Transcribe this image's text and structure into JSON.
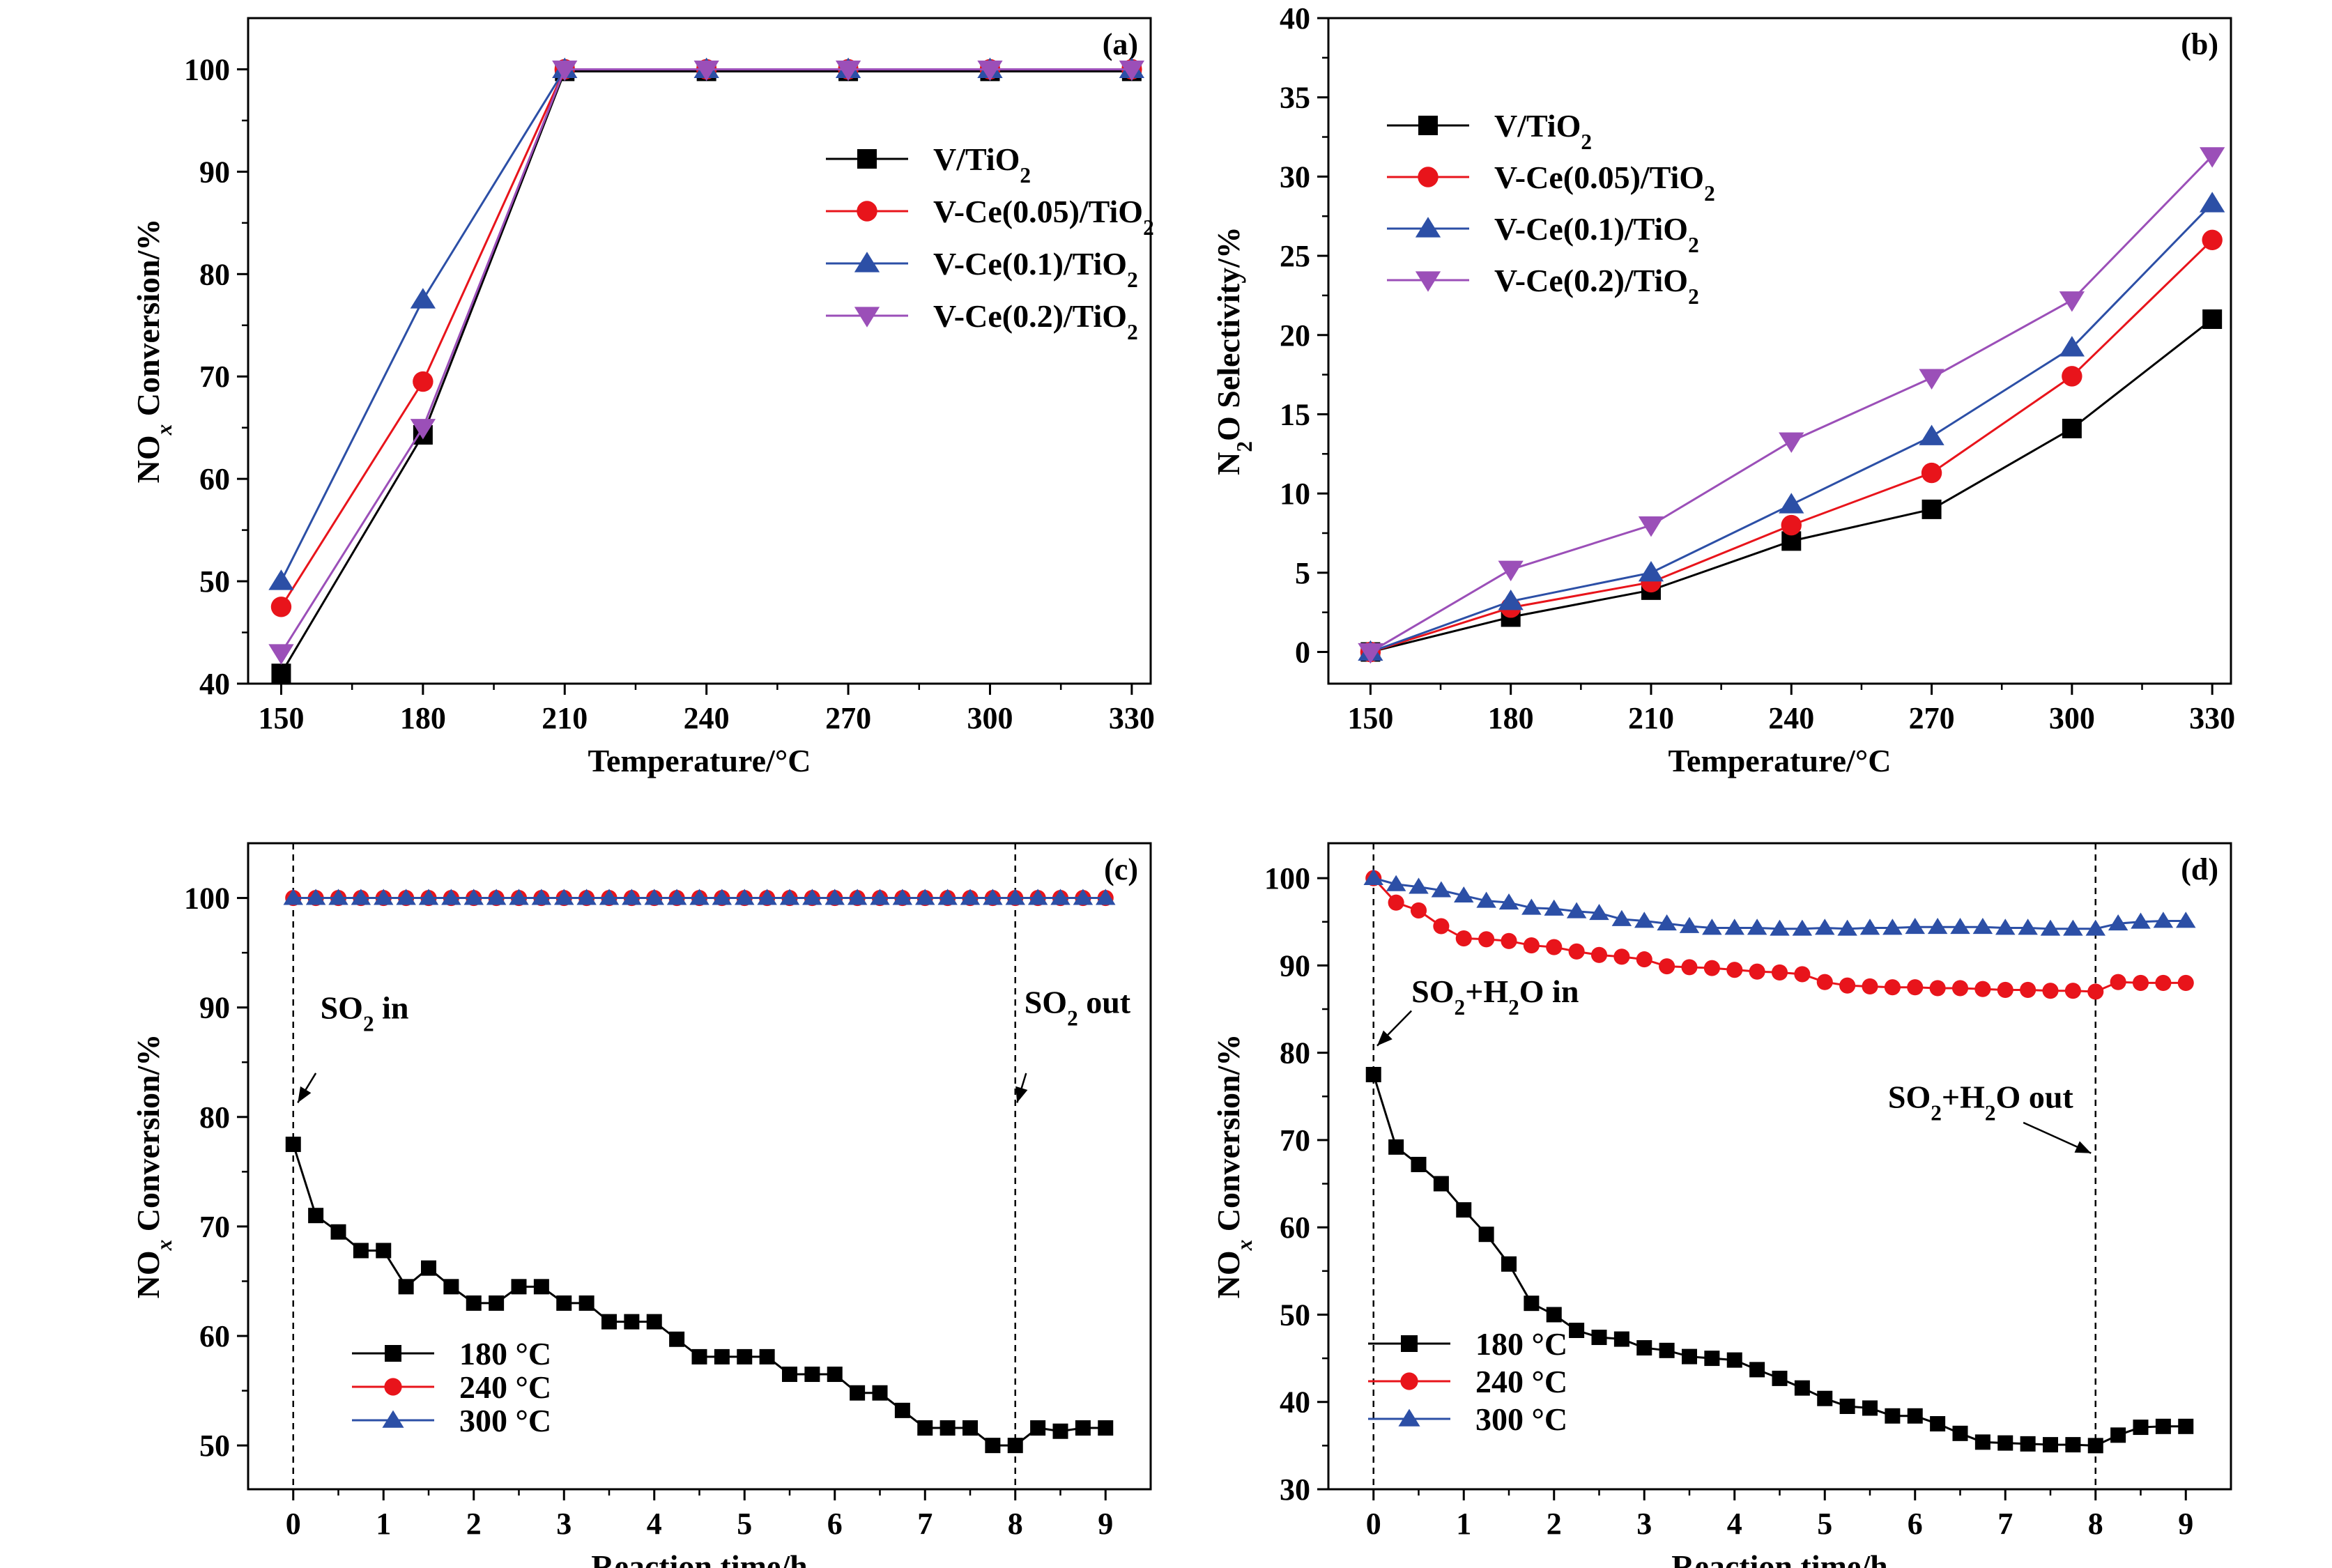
{
  "chart_data": [
    {
      "panel_label": "(a)",
      "type": "line",
      "xlabel": "Temperature/°C",
      "ylabel": "NOx Conversion/%",
      "ylabel_parts": [
        {
          "t": "NO",
          "style": "normal"
        },
        {
          "t": "x",
          "style": "sub-italic"
        },
        {
          "t": " Conversion/%",
          "style": "normal"
        }
      ],
      "xlim": [
        143,
        334
      ],
      "ylim": [
        40,
        105
      ],
      "xticks": [
        150,
        180,
        210,
        240,
        270,
        300,
        330
      ],
      "yticks": [
        40,
        50,
        60,
        70,
        80,
        90,
        100
      ],
      "x": [
        150,
        180,
        210,
        240,
        270,
        300,
        330
      ],
      "legend_position": "upper-right",
      "series": [
        {
          "name": "V/TiO2",
          "name_parts": [
            {
              "t": "V/TiO",
              "style": "normal"
            },
            {
              "t": "2",
              "style": "sub"
            }
          ],
          "color": "#000000",
          "marker": "square",
          "values": [
            41,
            64.3,
            99.8,
            99.8,
            99.8,
            99.8,
            99.8
          ]
        },
        {
          "name": "V-Ce(0.05)/TiO2",
          "name_parts": [
            {
              "t": "V-Ce(0.05)/TiO",
              "style": "normal"
            },
            {
              "t": "2",
              "style": "sub"
            }
          ],
          "color": "#e8141b",
          "marker": "circle",
          "values": [
            47.5,
            69.5,
            100,
            100,
            100,
            100,
            100
          ]
        },
        {
          "name": "V-Ce(0.1)/TiO2",
          "name_parts": [
            {
              "t": "V-Ce(0.1)/TiO",
              "style": "normal"
            },
            {
              "t": "2",
              "style": "sub"
            }
          ],
          "color": "#2c4fa6",
          "marker": "triangle-up",
          "values": [
            50,
            77.5,
            100,
            100,
            100,
            100,
            100
          ]
        },
        {
          "name": "V-Ce(0.2)/TiO2",
          "name_parts": [
            {
              "t": "V-Ce(0.2)/TiO",
              "style": "normal"
            },
            {
              "t": "2",
              "style": "sub"
            }
          ],
          "color": "#9b4fb8",
          "marker": "triangle-down",
          "values": [
            43,
            65,
            100,
            100,
            100,
            100,
            100
          ]
        }
      ]
    },
    {
      "panel_label": "(b)",
      "type": "line",
      "xlabel": "Temperature/°C",
      "ylabel": "N2O Selectivity/%",
      "ylabel_parts": [
        {
          "t": "N",
          "style": "normal"
        },
        {
          "t": "2",
          "style": "sub"
        },
        {
          "t": "O Selectivity/%",
          "style": "normal"
        }
      ],
      "xlim": [
        141,
        334
      ],
      "ylim": [
        -2,
        40
      ],
      "xticks": [
        150,
        180,
        210,
        240,
        270,
        300,
        330
      ],
      "yticks": [
        0,
        5,
        10,
        15,
        20,
        25,
        30,
        35,
        40
      ],
      "x": [
        150,
        180,
        210,
        240,
        270,
        300,
        330
      ],
      "legend_position": "upper-left",
      "series": [
        {
          "name": "V/TiO2",
          "name_parts": [
            {
              "t": "V/TiO",
              "style": "normal"
            },
            {
              "t": "2",
              "style": "sub"
            }
          ],
          "color": "#000000",
          "marker": "square",
          "values": [
            0,
            2.2,
            3.9,
            7,
            9,
            14.1,
            21
          ]
        },
        {
          "name": "V-Ce(0.05)/TiO2",
          "name_parts": [
            {
              "t": "V-Ce(0.05)/TiO",
              "style": "normal"
            },
            {
              "t": "2",
              "style": "sub"
            }
          ],
          "color": "#e8141b",
          "marker": "circle",
          "values": [
            0,
            2.8,
            4.4,
            8,
            11.3,
            17.4,
            26
          ]
        },
        {
          "name": "V-Ce(0.1)/TiO2",
          "name_parts": [
            {
              "t": "V-Ce(0.1)/TiO",
              "style": "normal"
            },
            {
              "t": "2",
              "style": "sub"
            }
          ],
          "color": "#2c4fa6",
          "marker": "triangle-up",
          "values": [
            0,
            3.2,
            5,
            9.3,
            13.6,
            19.2,
            28.3
          ]
        },
        {
          "name": "V-Ce(0.2)/TiO2",
          "name_parts": [
            {
              "t": "V-Ce(0.2)/TiO",
              "style": "normal"
            },
            {
              "t": "2",
              "style": "sub"
            }
          ],
          "color": "#9b4fb8",
          "marker": "triangle-down",
          "values": [
            0,
            5.2,
            8,
            13.3,
            17.3,
            22.2,
            31.3
          ]
        }
      ]
    },
    {
      "panel_label": "(c)",
      "type": "line",
      "xlabel": "Reaction time/h",
      "ylabel": "NOx Conversion/%",
      "ylabel_parts": [
        {
          "t": "NO",
          "style": "normal"
        },
        {
          "t": "x",
          "style": "sub-italic"
        },
        {
          "t": " Conversion/%",
          "style": "normal"
        }
      ],
      "xlim": [
        -0.5,
        9.5
      ],
      "ylim": [
        46,
        105
      ],
      "xticks": [
        0,
        1,
        2,
        3,
        4,
        5,
        6,
        7,
        8,
        9
      ],
      "yticks": [
        50,
        60,
        70,
        80,
        90,
        100
      ],
      "legend_position": "lower-left",
      "vlines": [
        0,
        8
      ],
      "annotations": [
        {
          "text": "SO2 in",
          "parts": [
            {
              "t": "SO",
              "style": "normal"
            },
            {
              "t": "2",
              "style": "sub"
            },
            {
              "t": " in",
              "style": "normal"
            }
          ],
          "text_x": 0.3,
          "text_y": 89,
          "arrow_from": [
            0.25,
            84
          ],
          "arrow_to": [
            0.05,
            81.3
          ]
        },
        {
          "text": "SO2 out",
          "parts": [
            {
              "t": "SO",
              "style": "normal"
            },
            {
              "t": "2",
              "style": "sub"
            },
            {
              "t": " out",
              "style": "normal"
            }
          ],
          "text_x": 8.1,
          "text_y": 89.5,
          "arrow_from": [
            8.12,
            84
          ],
          "arrow_to": [
            8.02,
            81.3
          ]
        }
      ],
      "series": [
        {
          "name": "180 °C",
          "name_parts": [
            {
              "t": "180 °C",
              "style": "normal"
            }
          ],
          "color": "#000000",
          "marker": "square",
          "x": [
            0,
            0.25,
            0.5,
            0.75,
            1,
            1.25,
            1.5,
            1.75,
            2,
            2.25,
            2.5,
            2.75,
            3,
            3.25,
            3.5,
            3.75,
            4,
            4.25,
            4.5,
            4.75,
            5,
            5.25,
            5.5,
            5.75,
            6,
            6.25,
            6.5,
            6.75,
            7,
            7.25,
            7.5,
            7.75,
            8,
            8.25,
            8.5,
            8.75,
            9
          ],
          "values": [
            77.5,
            71,
            69.5,
            67.8,
            67.8,
            64.5,
            66.2,
            64.5,
            63,
            63,
            64.5,
            64.5,
            63,
            63,
            61.3,
            61.3,
            61.3,
            59.7,
            58.1,
            58.1,
            58.1,
            58.1,
            56.5,
            56.5,
            56.5,
            54.8,
            54.8,
            53.2,
            51.6,
            51.6,
            51.6,
            50,
            50,
            51.6,
            51.3,
            51.6,
            51.6
          ]
        },
        {
          "name": "240 °C",
          "name_parts": [
            {
              "t": "240 °C",
              "style": "normal"
            }
          ],
          "color": "#e8141b",
          "marker": "circle",
          "x": [
            0,
            0.25,
            0.5,
            0.75,
            1,
            1.25,
            1.5,
            1.75,
            2,
            2.25,
            2.5,
            2.75,
            3,
            3.25,
            3.5,
            3.75,
            4,
            4.25,
            4.5,
            4.75,
            5,
            5.25,
            5.5,
            5.75,
            6,
            6.25,
            6.5,
            6.75,
            7,
            7.25,
            7.5,
            7.75,
            8,
            8.25,
            8.5,
            8.75,
            9
          ],
          "values": [
            100,
            100,
            100,
            100,
            100,
            100,
            100,
            100,
            100,
            100,
            100,
            100,
            100,
            100,
            100,
            100,
            100,
            100,
            100,
            100,
            100,
            100,
            100,
            100,
            100,
            100,
            100,
            100,
            100,
            100,
            100,
            100,
            100,
            100,
            100,
            100,
            100
          ]
        },
        {
          "name": "300 °C",
          "name_parts": [
            {
              "t": "300 °C",
              "style": "normal"
            }
          ],
          "color": "#2c4fa6",
          "marker": "triangle-up",
          "x": [
            0,
            0.25,
            0.5,
            0.75,
            1,
            1.25,
            1.5,
            1.75,
            2,
            2.25,
            2.5,
            2.75,
            3,
            3.25,
            3.5,
            3.75,
            4,
            4.25,
            4.5,
            4.75,
            5,
            5.25,
            5.5,
            5.75,
            6,
            6.25,
            6.5,
            6.75,
            7,
            7.25,
            7.5,
            7.75,
            8,
            8.25,
            8.5,
            8.75,
            9
          ],
          "values": [
            100,
            100,
            100,
            100,
            100,
            100,
            100,
            100,
            100,
            100,
            100,
            100,
            100,
            100,
            100,
            100,
            100,
            100,
            100,
            100,
            100,
            100,
            100,
            100,
            100,
            100,
            100,
            100,
            100,
            100,
            100,
            100,
            100,
            100,
            100,
            100,
            100
          ]
        }
      ]
    },
    {
      "panel_label": "(d)",
      "type": "line",
      "xlabel": "Reaction time/h",
      "ylabel": "NOx Conversion/%",
      "ylabel_parts": [
        {
          "t": "NO",
          "style": "normal"
        },
        {
          "t": "x",
          "style": "sub-italic"
        },
        {
          "t": " Conversion/%",
          "style": "normal"
        }
      ],
      "xlim": [
        -0.5,
        9.5
      ],
      "ylim": [
        30,
        104
      ],
      "xticks": [
        0,
        1,
        2,
        3,
        4,
        5,
        6,
        7,
        8,
        9
      ],
      "yticks": [
        30,
        40,
        50,
        60,
        70,
        80,
        90,
        100
      ],
      "legend_position": "lower-left",
      "vlines": [
        0,
        8
      ],
      "annotations": [
        {
          "text": "SO2+H2O in",
          "parts": [
            {
              "t": "SO",
              "style": "normal"
            },
            {
              "t": "2",
              "style": "sub"
            },
            {
              "t": "+H",
              "style": "normal"
            },
            {
              "t": "2",
              "style": "sub"
            },
            {
              "t": "O in",
              "style": "normal"
            }
          ],
          "text_x": 0.42,
          "text_y": 85.8,
          "arrow_from": [
            0.42,
            84.8
          ],
          "arrow_to": [
            0.04,
            80.8
          ]
        },
        {
          "text": "SO2+H2O out",
          "parts": [
            {
              "t": "SO",
              "style": "normal"
            },
            {
              "t": "2",
              "style": "sub"
            },
            {
              "t": "+H",
              "style": "normal"
            },
            {
              "t": "2",
              "style": "sub"
            },
            {
              "t": "O out",
              "style": "normal"
            }
          ],
          "text_x": 5.7,
          "text_y": 73.7,
          "arrow_from": [
            7.2,
            72
          ],
          "arrow_to": [
            7.95,
            68.5
          ]
        }
      ],
      "series": [
        {
          "name": "180 °C",
          "name_parts": [
            {
              "t": "180 °C",
              "style": "normal"
            }
          ],
          "color": "#000000",
          "marker": "square",
          "x": [
            0,
            0.25,
            0.5,
            0.75,
            1,
            1.25,
            1.5,
            1.75,
            2,
            2.25,
            2.5,
            2.75,
            3,
            3.25,
            3.5,
            3.75,
            4,
            4.25,
            4.5,
            4.75,
            5,
            5.25,
            5.5,
            5.75,
            6,
            6.25,
            6.5,
            6.75,
            7,
            7.25,
            7.5,
            7.75,
            8,
            8.25,
            8.5,
            8.75,
            9
          ],
          "values": [
            77.5,
            69.2,
            67.2,
            65,
            62,
            59.2,
            55.8,
            51.3,
            50,
            48.2,
            47.4,
            47.2,
            46.2,
            45.9,
            45.2,
            45,
            44.8,
            43.7,
            42.7,
            41.6,
            40.4,
            39.5,
            39.3,
            38.4,
            38.4,
            37.5,
            36.4,
            35.4,
            35.3,
            35.2,
            35.1,
            35.1,
            35,
            36.2,
            37.1,
            37.2,
            37.2
          ]
        },
        {
          "name": "240 °C",
          "name_parts": [
            {
              "t": "240 °C",
              "style": "normal"
            }
          ],
          "color": "#e8141b",
          "marker": "circle",
          "x": [
            0,
            0.25,
            0.5,
            0.75,
            1,
            1.25,
            1.5,
            1.75,
            2,
            2.25,
            2.5,
            2.75,
            3,
            3.25,
            3.5,
            3.75,
            4,
            4.25,
            4.5,
            4.75,
            5,
            5.25,
            5.5,
            5.75,
            6,
            6.25,
            6.5,
            6.75,
            7,
            7.25,
            7.5,
            7.75,
            8,
            8.25,
            8.5,
            8.75,
            9
          ],
          "values": [
            100,
            97.2,
            96.3,
            94.5,
            93.1,
            93,
            92.8,
            92.3,
            92.1,
            91.6,
            91.2,
            91,
            90.7,
            89.9,
            89.8,
            89.7,
            89.5,
            89.3,
            89.2,
            89,
            88.1,
            87.7,
            87.6,
            87.5,
            87.5,
            87.4,
            87.4,
            87.3,
            87.2,
            87.2,
            87.1,
            87.1,
            87,
            88.1,
            88,
            88,
            88
          ]
        },
        {
          "name": "300 °C",
          "name_parts": [
            {
              "t": "300 °C",
              "style": "normal"
            }
          ],
          "color": "#2c4fa6",
          "marker": "triangle-up",
          "x": [
            0,
            0.25,
            0.5,
            0.75,
            1,
            1.25,
            1.5,
            1.75,
            2,
            2.25,
            2.5,
            2.75,
            3,
            3.25,
            3.5,
            3.75,
            4,
            4.25,
            4.5,
            4.75,
            5,
            5.25,
            5.5,
            5.75,
            6,
            6.25,
            6.5,
            6.75,
            7,
            7.25,
            7.5,
            7.75,
            8,
            8.25,
            8.5,
            8.75,
            9
          ],
          "values": [
            100,
            99.3,
            99,
            98.6,
            98,
            97.4,
            97.2,
            96.6,
            96.5,
            96.2,
            96,
            95.3,
            95.1,
            94.8,
            94.5,
            94.3,
            94.3,
            94.3,
            94.2,
            94.2,
            94.3,
            94.2,
            94.3,
            94.3,
            94.4,
            94.4,
            94.4,
            94.4,
            94.3,
            94.3,
            94.2,
            94.2,
            94.2,
            94.8,
            95,
            95.1,
            95.1
          ]
        }
      ]
    }
  ]
}
